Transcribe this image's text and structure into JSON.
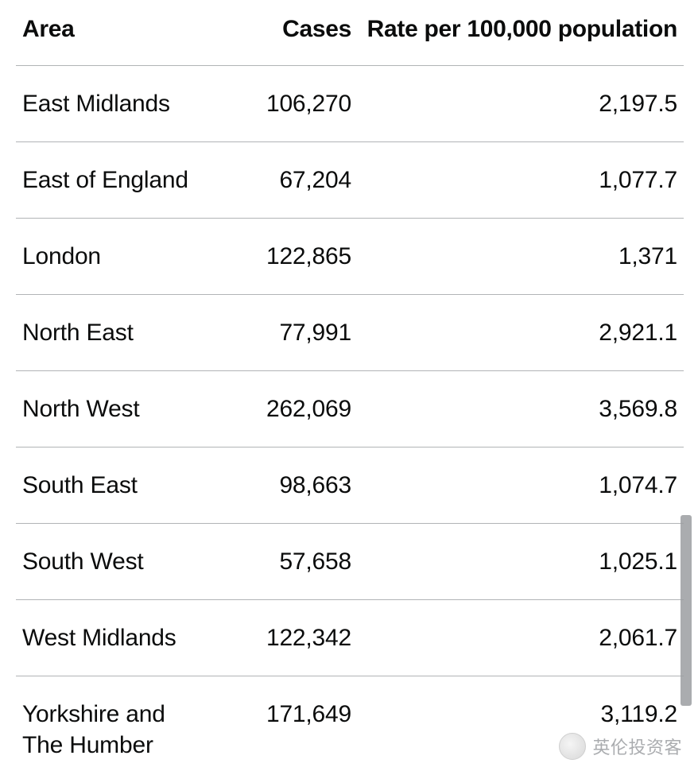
{
  "table": {
    "columns": [
      {
        "key": "area",
        "label": "Area",
        "align": "left"
      },
      {
        "key": "cases",
        "label": "Cases",
        "align": "right"
      },
      {
        "key": "rate",
        "label": "Rate per 100,000 population",
        "align": "right"
      }
    ],
    "rows": [
      {
        "area": "East Midlands",
        "cases": "106,270",
        "rate": "2,197.5"
      },
      {
        "area": "East of England",
        "cases": "67,204",
        "rate": "1,077.7"
      },
      {
        "area": "London",
        "cases": "122,865",
        "rate": "1,371"
      },
      {
        "area": "North East",
        "cases": "77,991",
        "rate": "2,921.1"
      },
      {
        "area": "North West",
        "cases": "262,069",
        "rate": "3,569.8"
      },
      {
        "area": "South East",
        "cases": "98,663",
        "rate": "1,074.7"
      },
      {
        "area": "South West",
        "cases": "57,658",
        "rate": "1,025.1"
      },
      {
        "area": "West Midlands",
        "cases": "122,342",
        "rate": "2,061.7"
      },
      {
        "area": "Yorkshire and The Humber",
        "cases": "171,649",
        "rate": "3,119.2"
      }
    ],
    "border_color": "#b1b4b6",
    "text_color": "#0b0c0c",
    "header_fontsize": 30,
    "body_fontsize": 30,
    "background_color": "#ffffff"
  },
  "scrollbar": {
    "color": "#9b9ea1"
  },
  "watermark": {
    "text": "英伦投资客"
  }
}
